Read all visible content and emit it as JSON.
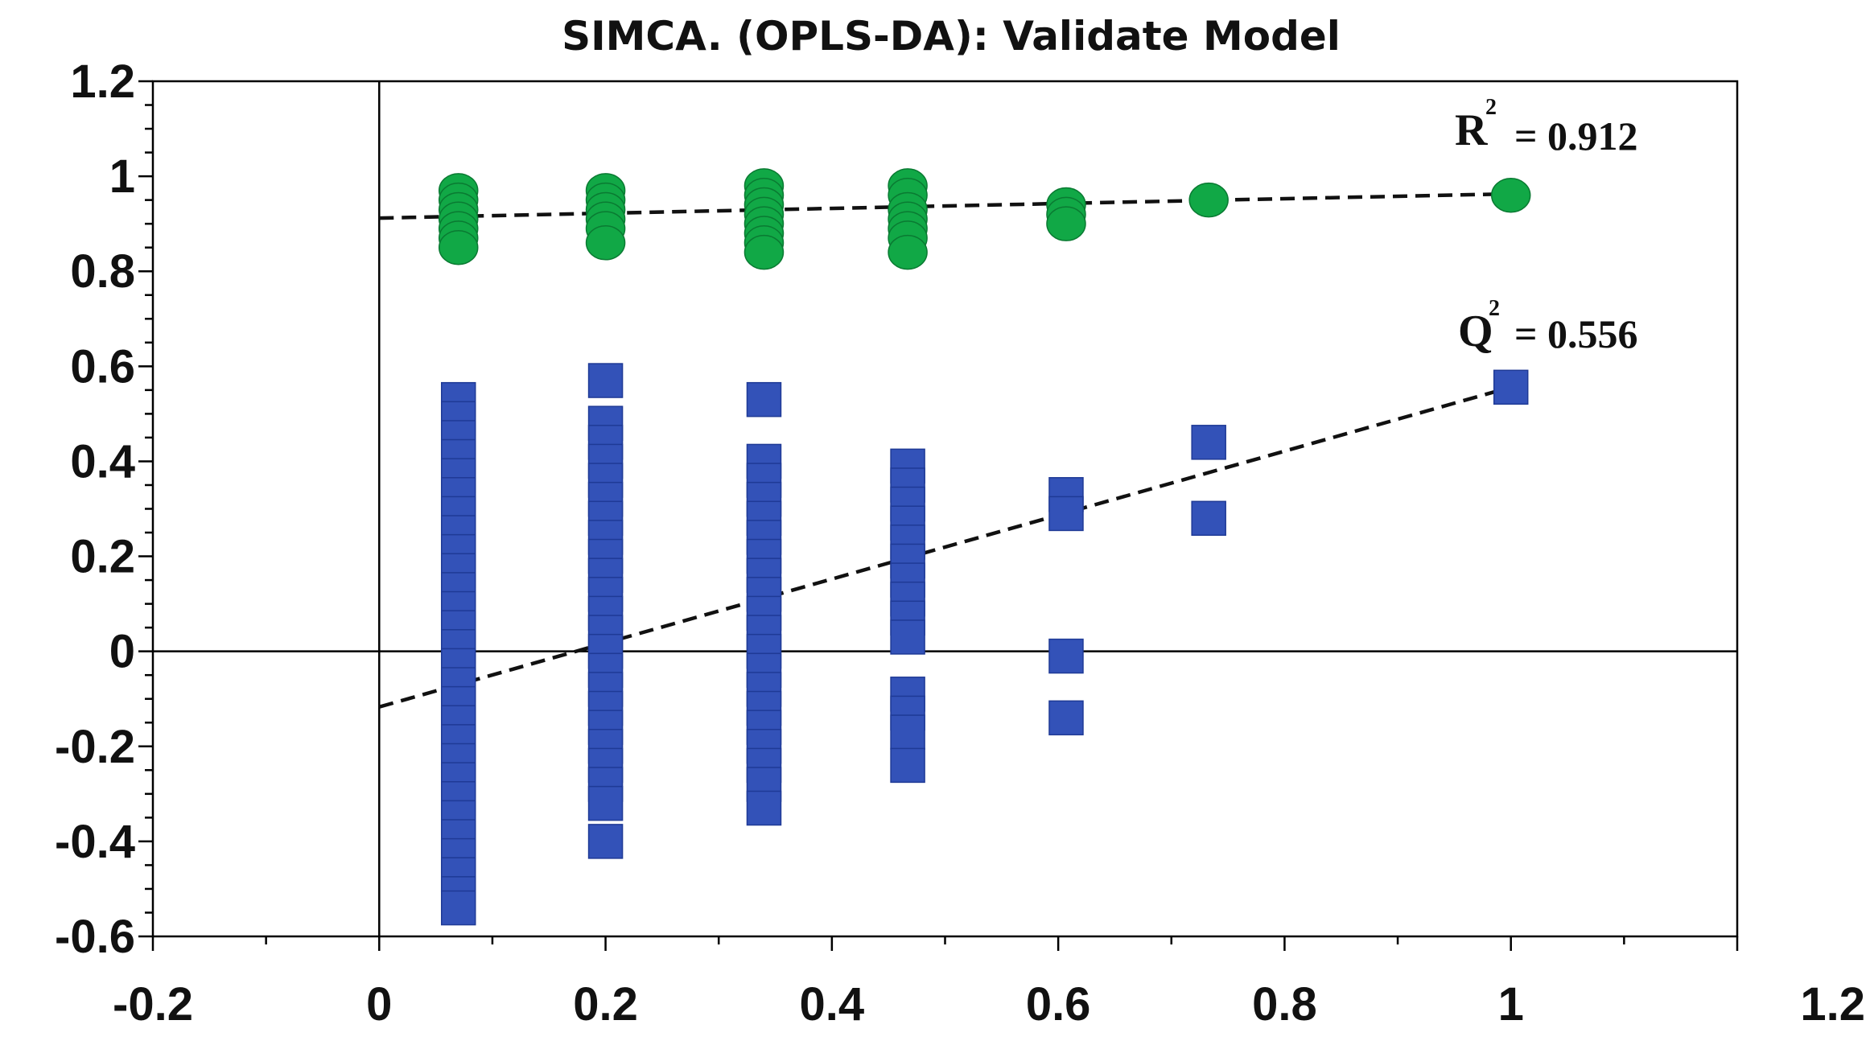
{
  "chart_data": {
    "type": "scatter",
    "title": "SIMCA. (OPLS-DA): Validate Model",
    "xlabel": "",
    "ylabel": "",
    "xlim": [
      -0.2,
      1.2
    ],
    "ylim": [
      -0.6,
      1.2
    ],
    "x_ticks": [
      -0.2,
      0,
      0.2,
      0.4,
      0.6,
      0.8,
      1,
      1.2
    ],
    "x_tick_labels": [
      "-0.2",
      "0",
      "0.2",
      "0.4",
      "0.6",
      "0.8",
      "1",
      "1.2"
    ],
    "y_ticks": [
      1.2,
      1,
      0.8,
      0.6,
      0.4,
      0.2,
      0,
      -0.2,
      -0.4,
      -0.6
    ],
    "y_tick_labels": [
      "1.2",
      "1",
      "0.8",
      "0.6",
      "0.4",
      "0.2",
      "0",
      "-0.2",
      "-0.4",
      "-0.6"
    ],
    "grid": false,
    "series": [
      {
        "name": "R2",
        "marker": "circle",
        "color": "#11A846",
        "points": [
          [
            0.07,
            0.97
          ],
          [
            0.07,
            0.95
          ],
          [
            0.07,
            0.93
          ],
          [
            0.07,
            0.91
          ],
          [
            0.07,
            0.89
          ],
          [
            0.07,
            0.87
          ],
          [
            0.07,
            0.85
          ],
          [
            0.2,
            0.97
          ],
          [
            0.2,
            0.95
          ],
          [
            0.2,
            0.93
          ],
          [
            0.2,
            0.91
          ],
          [
            0.2,
            0.89
          ],
          [
            0.2,
            0.86
          ],
          [
            0.34,
            0.98
          ],
          [
            0.34,
            0.96
          ],
          [
            0.34,
            0.94
          ],
          [
            0.34,
            0.92
          ],
          [
            0.34,
            0.9
          ],
          [
            0.34,
            0.88
          ],
          [
            0.34,
            0.86
          ],
          [
            0.34,
            0.84
          ],
          [
            0.467,
            0.98
          ],
          [
            0.467,
            0.96
          ],
          [
            0.467,
            0.93
          ],
          [
            0.467,
            0.91
          ],
          [
            0.467,
            0.89
          ],
          [
            0.467,
            0.87
          ],
          [
            0.467,
            0.84
          ],
          [
            0.607,
            0.94
          ],
          [
            0.607,
            0.92
          ],
          [
            0.607,
            0.9
          ],
          [
            0.733,
            0.95
          ],
          [
            1.0,
            0.96
          ]
        ]
      },
      {
        "name": "Q2",
        "marker": "square",
        "color": "#3352B8",
        "points": [
          [
            0.07,
            0.53
          ],
          [
            0.07,
            0.49
          ],
          [
            0.07,
            0.45
          ],
          [
            0.07,
            0.41
          ],
          [
            0.07,
            0.37
          ],
          [
            0.07,
            0.33
          ],
          [
            0.07,
            0.29
          ],
          [
            0.07,
            0.25
          ],
          [
            0.07,
            0.21
          ],
          [
            0.07,
            0.17
          ],
          [
            0.07,
            0.13
          ],
          [
            0.07,
            0.09
          ],
          [
            0.07,
            0.05
          ],
          [
            0.07,
            0.01
          ],
          [
            0.07,
            -0.03
          ],
          [
            0.07,
            -0.07
          ],
          [
            0.07,
            -0.11
          ],
          [
            0.07,
            -0.15
          ],
          [
            0.07,
            -0.19
          ],
          [
            0.07,
            -0.23
          ],
          [
            0.07,
            -0.27
          ],
          [
            0.07,
            -0.31
          ],
          [
            0.07,
            -0.35
          ],
          [
            0.07,
            -0.39
          ],
          [
            0.07,
            -0.43
          ],
          [
            0.07,
            -0.47
          ],
          [
            0.07,
            -0.51
          ],
          [
            0.07,
            -0.54
          ],
          [
            0.2,
            0.57
          ],
          [
            0.2,
            0.48
          ],
          [
            0.2,
            0.44
          ],
          [
            0.2,
            0.4
          ],
          [
            0.2,
            0.36
          ],
          [
            0.2,
            0.32
          ],
          [
            0.2,
            0.28
          ],
          [
            0.2,
            0.24
          ],
          [
            0.2,
            0.2
          ],
          [
            0.2,
            0.16
          ],
          [
            0.2,
            0.12
          ],
          [
            0.2,
            0.08
          ],
          [
            0.2,
            0.04
          ],
          [
            0.2,
            0.0
          ],
          [
            0.2,
            -0.04
          ],
          [
            0.2,
            -0.08
          ],
          [
            0.2,
            -0.12
          ],
          [
            0.2,
            -0.16
          ],
          [
            0.2,
            -0.2
          ],
          [
            0.2,
            -0.24
          ],
          [
            0.2,
            -0.28
          ],
          [
            0.2,
            -0.32
          ],
          [
            0.2,
            -0.4
          ],
          [
            0.34,
            0.53
          ],
          [
            0.34,
            0.4
          ],
          [
            0.34,
            0.36
          ],
          [
            0.34,
            0.32
          ],
          [
            0.34,
            0.28
          ],
          [
            0.34,
            0.24
          ],
          [
            0.34,
            0.2
          ],
          [
            0.34,
            0.16
          ],
          [
            0.34,
            0.12
          ],
          [
            0.34,
            0.08
          ],
          [
            0.34,
            0.04
          ],
          [
            0.34,
            0.0
          ],
          [
            0.34,
            -0.04
          ],
          [
            0.34,
            -0.08
          ],
          [
            0.34,
            -0.12
          ],
          [
            0.34,
            -0.16
          ],
          [
            0.34,
            -0.2
          ],
          [
            0.34,
            -0.24
          ],
          [
            0.34,
            -0.28
          ],
          [
            0.34,
            -0.33
          ],
          [
            0.467,
            0.39
          ],
          [
            0.467,
            0.35
          ],
          [
            0.467,
            0.31
          ],
          [
            0.467,
            0.27
          ],
          [
            0.467,
            0.23
          ],
          [
            0.467,
            0.19
          ],
          [
            0.467,
            0.15
          ],
          [
            0.467,
            0.11
          ],
          [
            0.467,
            0.07
          ],
          [
            0.467,
            0.03
          ],
          [
            0.467,
            -0.09
          ],
          [
            0.467,
            -0.13
          ],
          [
            0.467,
            -0.17
          ],
          [
            0.467,
            -0.24
          ],
          [
            0.607,
            0.33
          ],
          [
            0.607,
            0.29
          ],
          [
            0.607,
            -0.01
          ],
          [
            0.607,
            -0.14
          ],
          [
            0.733,
            0.44
          ],
          [
            0.733,
            0.28
          ],
          [
            1.0,
            0.556
          ]
        ]
      }
    ],
    "regression_lines": [
      {
        "name": "R2 fit",
        "x": [
          0,
          1.0
        ],
        "y": [
          0.912,
          0.963
        ]
      },
      {
        "name": "Q2 fit",
        "x": [
          0,
          1.0
        ],
        "y": [
          -0.117,
          0.556
        ]
      }
    ],
    "annotations": [
      {
        "label": "R",
        "superscript": "2",
        "text": "= 0.912"
      },
      {
        "label": "Q",
        "superscript": "2",
        "text": "= 0.556"
      }
    ]
  }
}
